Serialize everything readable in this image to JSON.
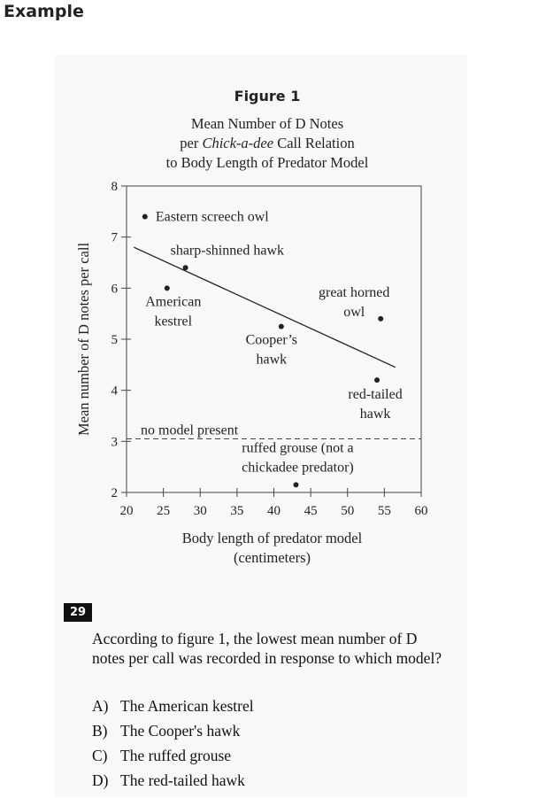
{
  "heading": "Example",
  "chart_data": {
    "type": "scatter",
    "figure_label": "Figure 1",
    "title_lines": [
      "Mean Number of D Notes",
      "per |Chick-a-dee| Call Relation",
      "to Body Length of Predator Model"
    ],
    "xlabel_lines": [
      "Body length of predator model",
      "(centimeters)"
    ],
    "ylabel": "Mean number of D notes per call",
    "xlim": [
      20,
      60
    ],
    "ylim": [
      2,
      8
    ],
    "xticks": [
      20,
      25,
      30,
      35,
      40,
      45,
      50,
      55,
      60
    ],
    "yticks": [
      2,
      3,
      4,
      5,
      6,
      7,
      8
    ],
    "points": [
      {
        "x": 22.5,
        "y": 7.4,
        "label_lines": [
          "Eastern screech owl"
        ]
      },
      {
        "x": 28.0,
        "y": 6.4,
        "label_lines": [
          "sharp-shinned hawk"
        ]
      },
      {
        "x": 25.5,
        "y": 6.0,
        "label_lines": [
          "American",
          "kestrel"
        ]
      },
      {
        "x": 41.0,
        "y": 5.25,
        "label_lines": [
          "Cooper’s",
          "hawk"
        ]
      },
      {
        "x": 54.5,
        "y": 5.4,
        "label_lines": [
          "great horned",
          "owl"
        ]
      },
      {
        "x": 54.0,
        "y": 4.2,
        "label_lines": [
          "red-tailed",
          "hawk"
        ]
      },
      {
        "x": 43.0,
        "y": 2.15,
        "label_lines": [
          "ruffed grouse (not a",
          "chickadee predator)"
        ]
      }
    ],
    "trend_line": {
      "x": [
        21,
        56.5
      ],
      "y": [
        6.8,
        4.45
      ]
    },
    "reference_line": {
      "y": 3.05,
      "label": "no model present"
    }
  },
  "question": {
    "number": "29",
    "text": "According to figure 1, the lowest mean number of D notes per call was recorded in response to which model?",
    "choices": [
      {
        "letter": "A)",
        "text": "The American kestrel"
      },
      {
        "letter": "B)",
        "text": "The Cooper's hawk"
      },
      {
        "letter": "C)",
        "text": "The ruffed grouse"
      },
      {
        "letter": "D)",
        "text": "The red-tailed hawk"
      }
    ]
  }
}
